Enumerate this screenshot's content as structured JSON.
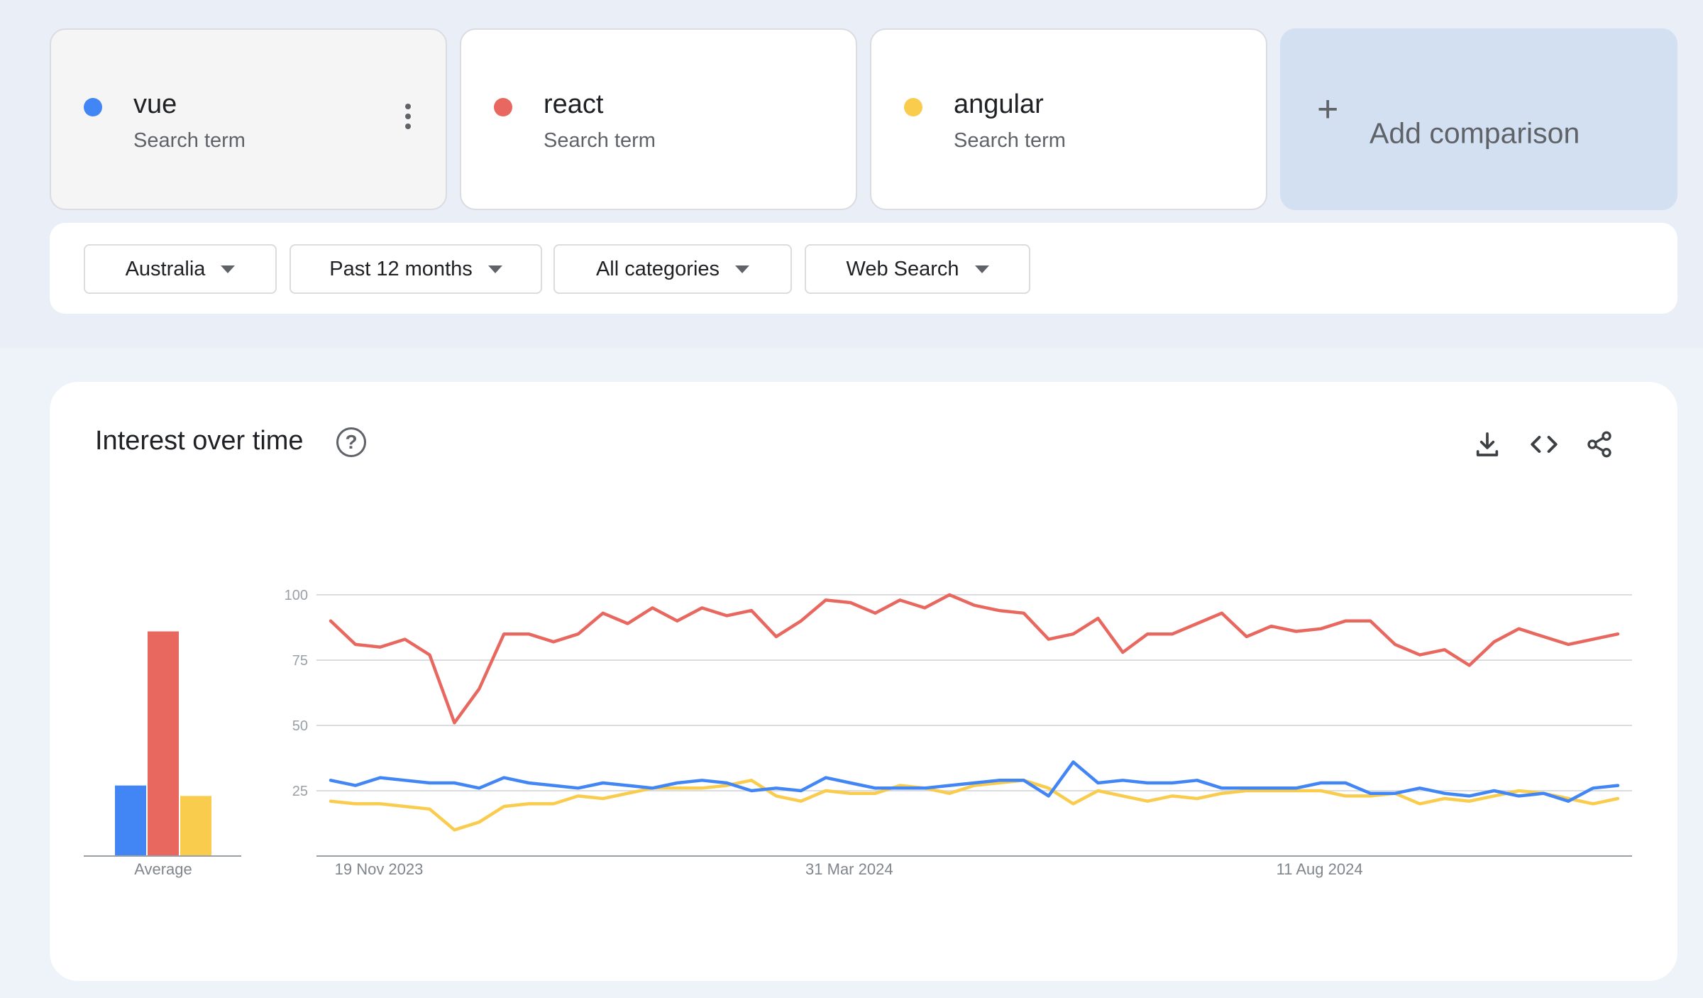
{
  "terms": [
    {
      "name": "vue",
      "subtitle": "Search term",
      "color": "#4285f4"
    },
    {
      "name": "react",
      "subtitle": "Search term",
      "color": "#e8675f"
    },
    {
      "name": "angular",
      "subtitle": "Search term",
      "color": "#f9cc4d"
    }
  ],
  "add_comparison": {
    "icon": "plus-icon",
    "label": "Add comparison"
  },
  "filters": {
    "region": "Australia",
    "time": "Past 12 months",
    "category": "All categories",
    "search_type": "Web Search"
  },
  "interest": {
    "title": "Interest over time",
    "icons": [
      "help-icon",
      "download-icon",
      "embed-code-icon",
      "share-icon"
    ]
  },
  "chart_data": {
    "type": "line",
    "y_ticks": [
      100,
      75,
      50,
      25
    ],
    "ylim": [
      0,
      100
    ],
    "grid": true,
    "x_labels": [
      "19 Nov 2023",
      "31 Mar 2024",
      "11 Aug 2024"
    ],
    "x_label_indices": [
      0,
      19,
      38
    ],
    "average_label": "Average",
    "average_values": {
      "vue": 27,
      "react": 86,
      "angular": 23
    },
    "series": [
      {
        "name": "react",
        "color": "#e8675f",
        "values": [
          90,
          81,
          80,
          83,
          77,
          51,
          64,
          85,
          85,
          82,
          85,
          93,
          89,
          95,
          90,
          95,
          92,
          94,
          84,
          90,
          98,
          97,
          93,
          98,
          95,
          100,
          96,
          94,
          93,
          83,
          85,
          91,
          78,
          85,
          85,
          89,
          93,
          84,
          88,
          86,
          87,
          90,
          90,
          81,
          77,
          79,
          73,
          82,
          87,
          84,
          81,
          83,
          85
        ]
      },
      {
        "name": "vue",
        "color": "#4285f4",
        "values": [
          29,
          27,
          30,
          29,
          28,
          28,
          26,
          30,
          28,
          27,
          26,
          28,
          27,
          26,
          28,
          29,
          28,
          25,
          26,
          25,
          30,
          28,
          26,
          26,
          26,
          27,
          28,
          29,
          29,
          23,
          36,
          28,
          29,
          28,
          28,
          29,
          26,
          26,
          26,
          26,
          28,
          28,
          24,
          24,
          26,
          24,
          23,
          25,
          23,
          24,
          21,
          26,
          27
        ]
      },
      {
        "name": "angular",
        "color": "#f9cc4d",
        "values": [
          21,
          20,
          20,
          19,
          18,
          10,
          13,
          19,
          20,
          20,
          23,
          22,
          24,
          26,
          26,
          26,
          27,
          29,
          23,
          21,
          25,
          24,
          24,
          27,
          26,
          24,
          27,
          28,
          29,
          26,
          20,
          25,
          23,
          21,
          23,
          22,
          24,
          25,
          25,
          25,
          25,
          23,
          23,
          24,
          20,
          22,
          21,
          23,
          25,
          24,
          22,
          20,
          22
        ]
      }
    ]
  }
}
